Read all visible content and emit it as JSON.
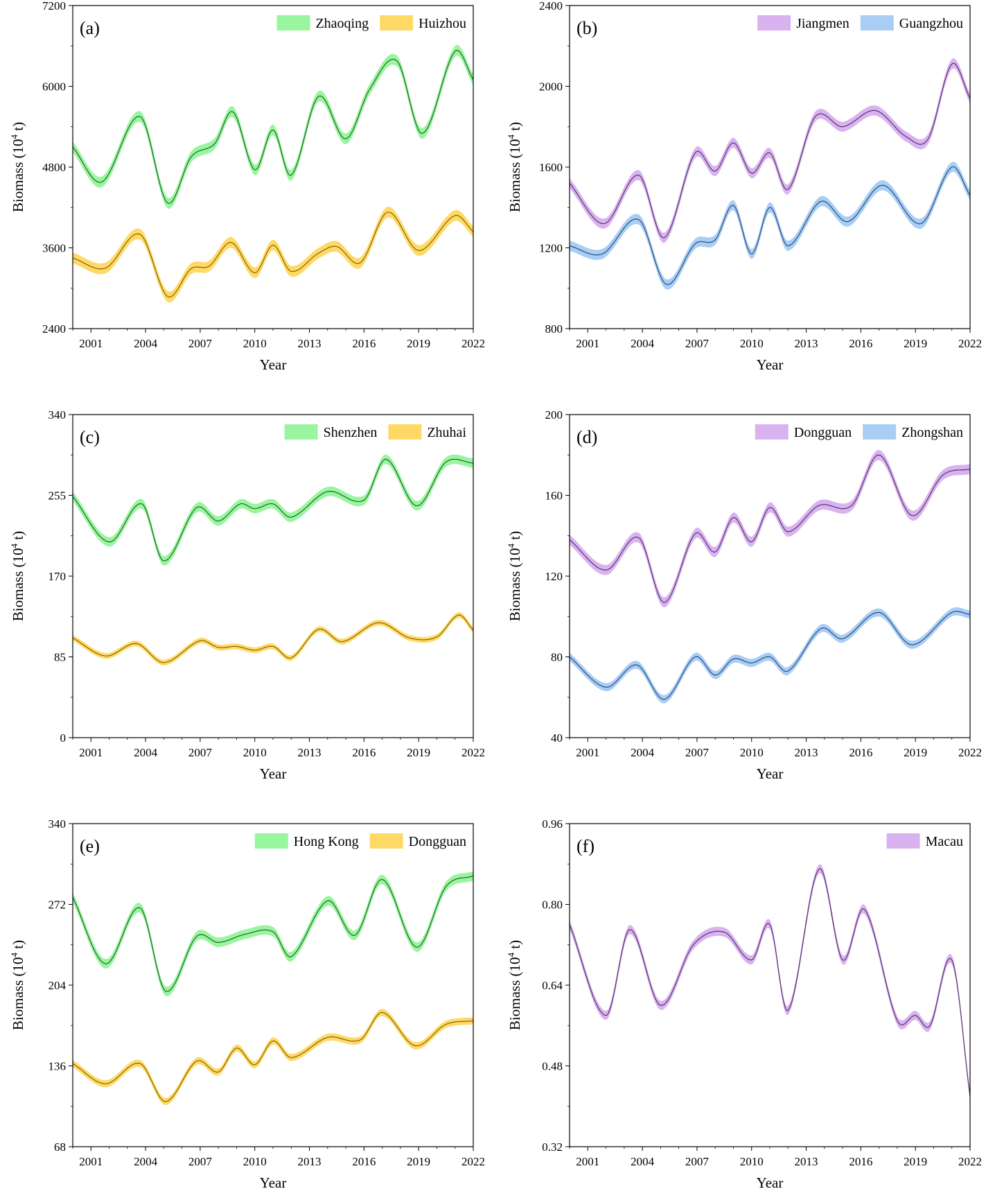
{
  "chart_data": [
    {
      "type": "line",
      "panel_label": "(a)",
      "xlabel": "Year",
      "ylabel_prefix": "Biomass (10",
      "ylabel_sup": "4",
      "ylabel_suffix": " t)",
      "xlim": [
        2000,
        2022
      ],
      "ylim": [
        2400,
        7200
      ],
      "xticks": [
        2001,
        2004,
        2007,
        2010,
        2013,
        2016,
        2019,
        2022
      ],
      "yticks": [
        2400,
        3600,
        4800,
        6000,
        7200
      ],
      "legend_position": "top-right",
      "series": [
        {
          "name": "Zhaoqing",
          "color": "#2f8f2f",
          "band_color": "#99f5a0",
          "band": 80,
          "x": [
            2000,
            2001.6,
            2003.7,
            2005.2,
            2006.5,
            2007.8,
            2008.8,
            2010,
            2011,
            2012,
            2013.5,
            2015,
            2016.3,
            2017.8,
            2019.2,
            2021,
            2022
          ],
          "y": [
            5100,
            4580,
            5550,
            4270,
            4950,
            5150,
            5620,
            4760,
            5350,
            4680,
            5850,
            5220,
            5950,
            6380,
            5300,
            6520,
            6100
          ]
        },
        {
          "name": "Huizhou",
          "color": "#b58a00",
          "band_color": "#ffd966",
          "band": 80,
          "x": [
            2000,
            2001.8,
            2003.7,
            2005.2,
            2006.5,
            2007.5,
            2008.7,
            2010,
            2011,
            2012,
            2013.5,
            2014.5,
            2015.8,
            2017.3,
            2019,
            2021,
            2022
          ],
          "y": [
            3450,
            3300,
            3800,
            2880,
            3290,
            3330,
            3680,
            3230,
            3640,
            3250,
            3520,
            3620,
            3380,
            4130,
            3560,
            4080,
            3840
          ]
        }
      ]
    },
    {
      "type": "line",
      "panel_label": "(b)",
      "xlabel": "Year",
      "ylabel_prefix": "Biomass (10",
      "ylabel_sup": "4",
      "ylabel_suffix": " t)",
      "xlim": [
        2000,
        2022
      ],
      "ylim": [
        800,
        2400
      ],
      "xticks": [
        2001,
        2004,
        2007,
        2010,
        2013,
        2016,
        2019,
        2022
      ],
      "yticks": [
        800,
        1200,
        1600,
        2000,
        2400
      ],
      "legend_position": "top-right",
      "series": [
        {
          "name": "Jiangmen",
          "color": "#7a4a9a",
          "band_color": "#d9b3ef",
          "band": 25,
          "x": [
            2000,
            2001.9,
            2003.8,
            2005.2,
            2006.9,
            2008,
            2009,
            2010,
            2011,
            2012,
            2013.5,
            2015,
            2016.8,
            2018.5,
            2019.7,
            2021,
            2022
          ],
          "y": [
            1520,
            1320,
            1560,
            1250,
            1670,
            1580,
            1720,
            1570,
            1670,
            1490,
            1850,
            1800,
            1880,
            1750,
            1740,
            2110,
            1940
          ]
        },
        {
          "name": "Guangzhou",
          "color": "#3a6ea5",
          "band_color": "#a9cdf5",
          "band": 25,
          "x": [
            2000,
            2001.8,
            2003.8,
            2005.3,
            2006.9,
            2008,
            2009,
            2010,
            2011,
            2012,
            2013.8,
            2015.3,
            2017.2,
            2019.3,
            2021,
            2022
          ],
          "y": [
            1210,
            1170,
            1340,
            1020,
            1220,
            1240,
            1410,
            1170,
            1400,
            1210,
            1430,
            1330,
            1510,
            1320,
            1600,
            1460
          ]
        }
      ]
    },
    {
      "type": "line",
      "panel_label": "(c)",
      "xlabel": "Year",
      "ylabel_prefix": "Biomass (10",
      "ylabel_sup": "4",
      "ylabel_suffix": " t)",
      "xlim": [
        2000,
        2022
      ],
      "ylim": [
        0,
        340
      ],
      "xticks": [
        2001,
        2004,
        2007,
        2010,
        2013,
        2016,
        2019,
        2022
      ],
      "yticks": [
        0,
        85,
        170,
        255,
        340
      ],
      "legend_position": "top-right",
      "series": [
        {
          "name": "Shenzhen",
          "color": "#2f8f2f",
          "band_color": "#99f5a0",
          "band": 5,
          "x": [
            2000,
            2002,
            2003.8,
            2005,
            2006.8,
            2008,
            2009.2,
            2010,
            2011,
            2012,
            2014,
            2016,
            2017.2,
            2018.9,
            2020.5,
            2022
          ],
          "y": [
            254,
            206,
            246,
            186,
            242,
            228,
            246,
            241,
            246,
            232,
            259,
            250,
            293,
            244,
            290,
            289
          ]
        },
        {
          "name": "Zhuhai",
          "color": "#b58a00",
          "band_color": "#ffd966",
          "band": 3,
          "x": [
            2000,
            2001.8,
            2003.5,
            2005,
            2007,
            2008,
            2009,
            2010,
            2011,
            2012,
            2013.5,
            2014.8,
            2016.8,
            2018.5,
            2020,
            2021.2,
            2022
          ],
          "y": [
            105,
            86,
            99,
            79,
            102,
            95,
            96,
            92,
            96,
            84,
            114,
            101,
            121,
            105,
            106,
            129,
            113
          ]
        }
      ]
    },
    {
      "type": "line",
      "panel_label": "(d)",
      "xlabel": "Year",
      "ylabel_prefix": "Biomass (10",
      "ylabel_sup": "4",
      "ylabel_suffix": " t)",
      "xlim": [
        2000,
        2022
      ],
      "ylim": [
        40,
        200
      ],
      "xticks": [
        2001,
        2004,
        2007,
        2010,
        2013,
        2016,
        2019,
        2022
      ],
      "yticks": [
        40,
        80,
        120,
        160,
        200
      ],
      "legend_position": "top-right",
      "series": [
        {
          "name": "Dongguan",
          "color": "#7a4a9a",
          "band_color": "#d9b3ef",
          "band": 2.5,
          "x": [
            2000,
            2002,
            2003.8,
            2005.2,
            2006.9,
            2008,
            2009,
            2010,
            2011,
            2012,
            2013.7,
            2015.5,
            2017,
            2018.8,
            2020.5,
            2022
          ],
          "y": [
            138,
            123,
            139,
            107,
            141,
            132,
            149,
            137,
            154,
            142,
            155,
            155,
            180,
            150,
            170,
            173
          ]
        },
        {
          "name": "Zhongshan",
          "color": "#3a6ea5",
          "band_color": "#a9cdf5",
          "band": 2,
          "x": [
            2000,
            2002,
            2003.7,
            2005.2,
            2006.9,
            2008,
            2009,
            2010,
            2011,
            2012,
            2013.8,
            2015,
            2017,
            2018.8,
            2021,
            2022
          ],
          "y": [
            80,
            65,
            76,
            59,
            80,
            71,
            79,
            77,
            80,
            73,
            94,
            89,
            102,
            86,
            102,
            101
          ]
        }
      ]
    },
    {
      "type": "line",
      "panel_label": "(e)",
      "xlabel": "Year",
      "ylabel_prefix": "Biomass (10",
      "ylabel_sup": "4",
      "ylabel_suffix": " t)",
      "xlim": [
        2000,
        2022
      ],
      "ylim": [
        68,
        340
      ],
      "xticks": [
        2001,
        2004,
        2007,
        2010,
        2013,
        2016,
        2019,
        2022
      ],
      "yticks": [
        68,
        136,
        204,
        272,
        340
      ],
      "legend_position": "top-right",
      "series": [
        {
          "name": "Hong Kong",
          "color": "#2f8f2f",
          "band_color": "#99f5a0",
          "band": 4,
          "x": [
            2000,
            2001.8,
            2003.7,
            2005.1,
            2006.8,
            2008,
            2009.5,
            2011,
            2012,
            2014,
            2015.5,
            2017,
            2018.9,
            2020.5,
            2022
          ],
          "y": [
            278,
            222,
            269,
            199,
            245,
            240,
            247,
            249,
            228,
            275,
            246,
            293,
            236,
            287,
            296
          ]
        },
        {
          "name": "Dongguan",
          "color": "#b58a00",
          "band_color": "#ffd966",
          "band": 3,
          "x": [
            2000,
            2001.8,
            2003.7,
            2005.1,
            2006.8,
            2008,
            2009,
            2010,
            2011,
            2012,
            2014,
            2015.8,
            2017,
            2018.8,
            2020.5,
            2022
          ],
          "y": [
            138,
            121,
            138,
            106,
            140,
            131,
            151,
            137,
            157,
            143,
            160,
            158,
            181,
            153,
            171,
            174
          ]
        }
      ]
    },
    {
      "type": "line",
      "panel_label": "(f)",
      "xlabel": "Year",
      "ylabel_prefix": "Biomass (10",
      "ylabel_sup": "4",
      "ylabel_suffix": " t)",
      "xlim": [
        2000,
        2022
      ],
      "ylim": [
        0.32,
        0.96
      ],
      "xticks": [
        2001,
        2004,
        2007,
        2010,
        2013,
        2016,
        2019,
        2022
      ],
      "yticks": [
        0.32,
        0.48,
        0.64,
        0.8,
        0.96
      ],
      "ytick_decimals": 2,
      "legend_position": "top-right",
      "series": [
        {
          "name": "Macau",
          "color": "#7a4a9a",
          "band_color": "#d9b3ef",
          "band": 0.009,
          "x": [
            2000,
            2002,
            2003.3,
            2005,
            2006.8,
            2008.5,
            2010,
            2011,
            2012,
            2013.7,
            2015,
            2016.2,
            2018,
            2019,
            2019.8,
            2021,
            2022
          ],
          "y": [
            0.76,
            0.58,
            0.75,
            0.6,
            0.72,
            0.745,
            0.69,
            0.76,
            0.59,
            0.87,
            0.69,
            0.79,
            0.57,
            0.58,
            0.56,
            0.69,
            0.42
          ]
        }
      ]
    }
  ]
}
